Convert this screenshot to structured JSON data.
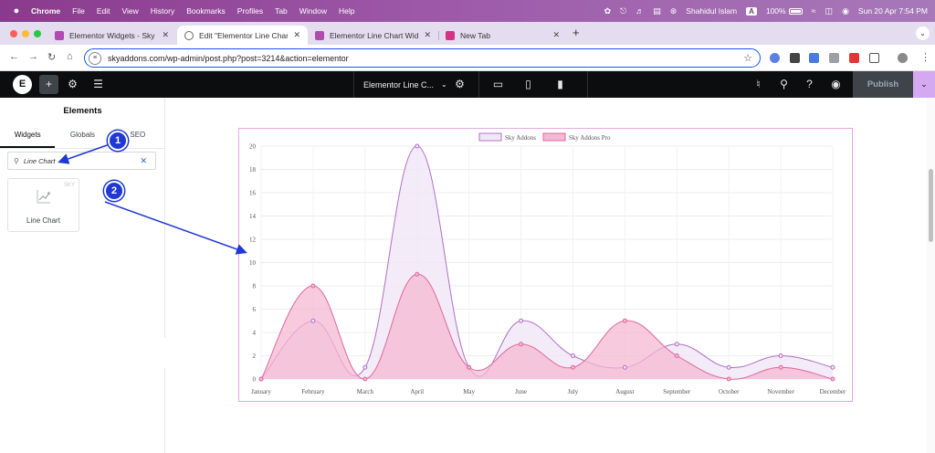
{
  "menubar": {
    "app_name": "Chrome",
    "menus": [
      "File",
      "Edit",
      "View",
      "History",
      "Bookmarks",
      "Profiles",
      "Tab",
      "Window",
      "Help"
    ],
    "user": "Shahidul Islam",
    "input_source": "A",
    "battery": "100%",
    "datetime": "Sun 20 Apr  7:54 PM"
  },
  "tabs": [
    {
      "title": "Elementor Widgets - Sky Add",
      "favicon": "sky-addons-icon"
    },
    {
      "title": "Edit \"Elementor Line Chart W",
      "favicon": "globe-icon"
    },
    {
      "title": "Elementor Line Chart Widget",
      "favicon": "sky-addons-icon"
    },
    {
      "title": "New Tab",
      "favicon": "sky-addons-icon"
    }
  ],
  "address": {
    "url": "skyaddons.com/wp-admin/post.php?post=3214&action=elementor"
  },
  "elementor": {
    "document_title": "Elementor Line C...",
    "publish_label": "Publish"
  },
  "panel": {
    "title": "Elements",
    "tabs": [
      "Widgets",
      "Globals",
      "SEO"
    ],
    "search_value": "Line Chart",
    "widget": {
      "label": "Line Chart",
      "badge": "SKY"
    }
  },
  "callouts": [
    "1",
    "2"
  ],
  "colors": {
    "series1_stroke": "#b06fc6",
    "series1_fill": "#f1e8f6",
    "series2_stroke": "#e0669e",
    "series2_fill": "#f4b8d2",
    "elementor_accent": "#d5a9f2",
    "callout": "#1f38d6"
  },
  "chart_data": {
    "type": "line",
    "smooth": true,
    "area_fill": true,
    "categories": [
      "January",
      "February",
      "March",
      "April",
      "May",
      "June",
      "July",
      "August",
      "September",
      "October",
      "November",
      "December"
    ],
    "series": [
      {
        "name": "Sky Addons",
        "values": [
          0,
          5,
          1,
          20,
          1,
          5,
          2,
          1,
          3,
          1,
          2,
          1
        ]
      },
      {
        "name": "Sky Addons Pro",
        "values": [
          0,
          8,
          0,
          9,
          1,
          3,
          1,
          5,
          2,
          0,
          1,
          0
        ]
      }
    ],
    "ylim": [
      0,
      20
    ],
    "yticks": [
      0,
      2,
      4,
      6,
      8,
      10,
      12,
      14,
      16,
      18,
      20
    ],
    "grid": true,
    "legend_position": "top"
  }
}
